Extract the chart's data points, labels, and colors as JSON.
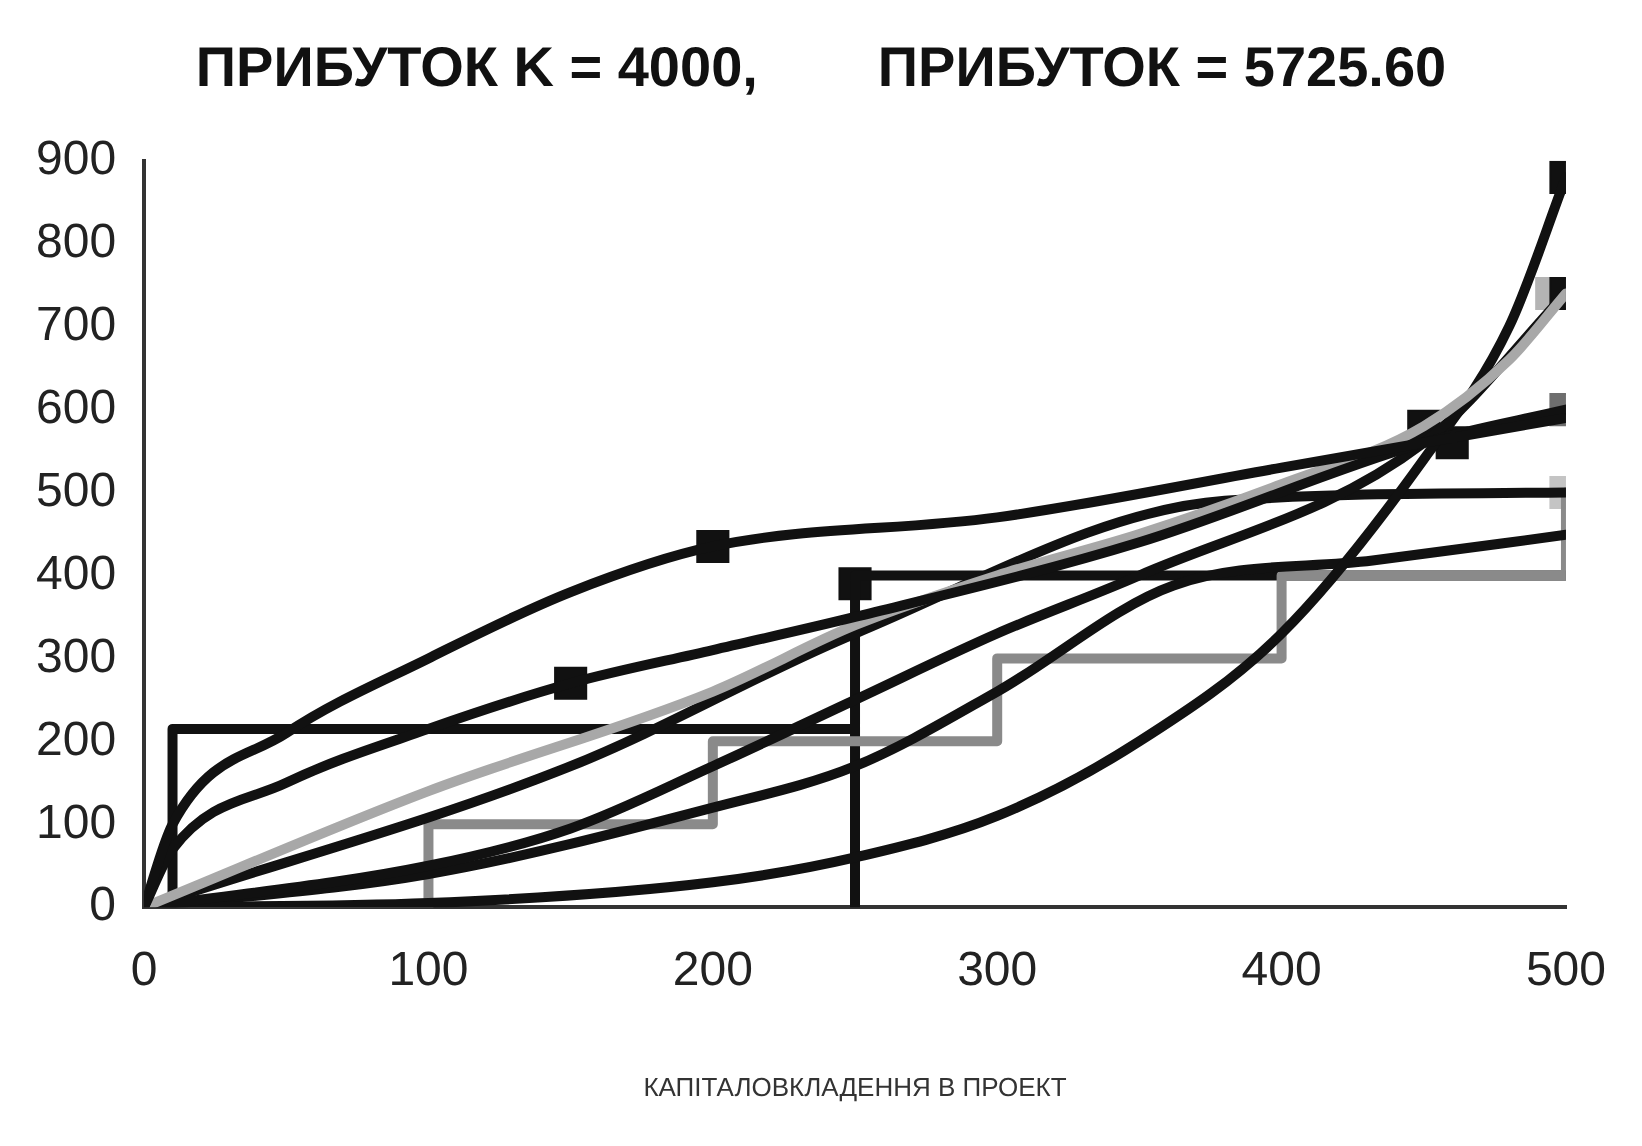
{
  "chart_data": {
    "type": "line",
    "title": "ПРИБУТОК K = 4000,",
    "subtitle": "ПРИБУТОК = 5725.60",
    "xlabel": "КАПІТАЛОВКЛАДЕННЯ В ПРОЕКТ",
    "xlim": [
      0,
      500
    ],
    "xticks": [
      0,
      100,
      200,
      300,
      400,
      500
    ],
    "ylim": [
      0,
      900
    ],
    "yticks": [
      0,
      100,
      200,
      300,
      400,
      500,
      600,
      700,
      800,
      900
    ],
    "grid": false,
    "legend": false,
    "series": [
      {
        "color": "#111111",
        "x": [
          0,
          10,
          50,
          100,
          150,
          200,
          300,
          400,
          500
        ],
        "values": [
          0,
          100,
          210,
          300,
          380,
          435,
          470,
          530,
          590
        ]
      },
      {
        "color": "#111111",
        "x": [
          0,
          10,
          50,
          100,
          150,
          200,
          250,
          350,
          450,
          500
        ],
        "values": [
          0,
          70,
          150,
          215,
          270,
          310,
          350,
          440,
          560,
          600
        ]
      },
      {
        "color": "#a8a8a8",
        "x": [
          0,
          100,
          200,
          250,
          300,
          350,
          400,
          450,
          480,
          500
        ],
        "values": [
          0,
          140,
          260,
          340,
          400,
          450,
          510,
          580,
          660,
          740
        ]
      },
      {
        "color": "#111111",
        "x": [
          0,
          100,
          150,
          200,
          250,
          300,
          350,
          450,
          500
        ],
        "values": [
          0,
          50,
          95,
          170,
          250,
          330,
          400,
          560,
          740
        ]
      },
      {
        "color": "#111111",
        "x": [
          0,
          100,
          200,
          250,
          300,
          350,
          400,
          450,
          480,
          500
        ],
        "values": [
          0,
          5,
          30,
          60,
          110,
          200,
          330,
          540,
          700,
          880
        ]
      },
      {
        "color": "#111111",
        "x": [
          0,
          150,
          250,
          380,
          500
        ],
        "values": [
          0,
          170,
          330,
          490,
          500
        ]
      },
      {
        "color": "#111111",
        "x": [
          0,
          100,
          200,
          250,
          300,
          362,
          432,
          500
        ],
        "values": [
          0,
          40,
          120,
          170,
          260,
          388,
          418,
          449
        ]
      },
      {
        "type": "step",
        "color": "#8a8a8a",
        "x": [
          0,
          100,
          200,
          300,
          400,
          500
        ],
        "values": [
          0,
          100,
          200,
          300,
          400,
          500
        ]
      },
      {
        "type": "step",
        "color": "#111111",
        "x": [
          0,
          10,
          250,
          250,
          500
        ],
        "values": [
          0,
          215,
          0,
          400,
          400
        ]
      },
      {
        "type": "scatter",
        "marker": "square",
        "color": "#111111",
        "x": [
          150,
          200,
          250,
          450,
          460,
          500,
          500
        ],
        "values": [
          270,
          435,
          390,
          580,
          560,
          880,
          740
        ]
      },
      {
        "type": "scatter",
        "marker": "square",
        "colors": [
          "#b4b4b4",
          "#6e6e6e",
          "#c4c4c4"
        ],
        "x": [
          495,
          500,
          500
        ],
        "values": [
          740,
          600,
          500
        ]
      }
    ]
  }
}
